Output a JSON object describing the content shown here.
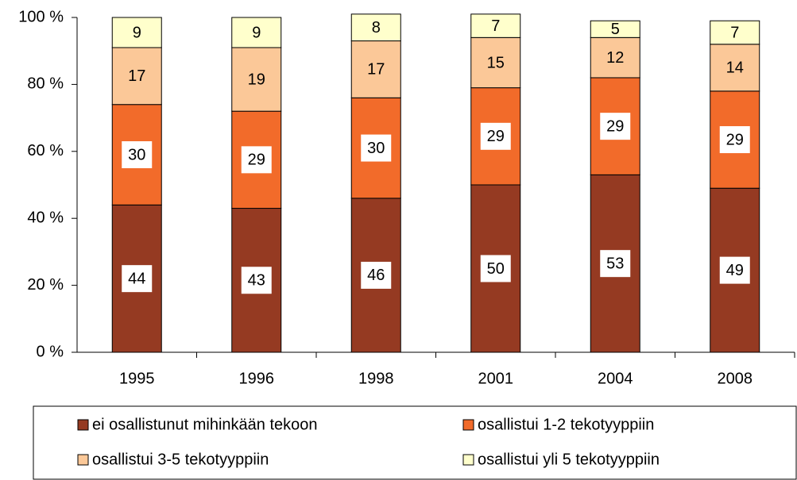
{
  "chart_data": {
    "type": "stacked_bar",
    "categories": [
      "1995",
      "1996",
      "1998",
      "2001",
      "2004",
      "2008"
    ],
    "series": [
      {
        "name": "ei osallistunut mihinkään tekoon",
        "color": "#953a22",
        "values": [
          44,
          43,
          46,
          50,
          53,
          49
        ]
      },
      {
        "name": "osallistui 1-2 tekotyyppiin",
        "color": "#f26b2a",
        "values": [
          30,
          29,
          30,
          29,
          29,
          29
        ]
      },
      {
        "name": "osallistui 3-5 tekotyyppiin",
        "color": "#fbc898",
        "values": [
          17,
          19,
          17,
          15,
          12,
          14
        ]
      },
      {
        "name": "osallistui yli 5 tekotyyppiin",
        "color": "#ffffcc",
        "values": [
          9,
          9,
          8,
          7,
          5,
          7
        ]
      }
    ],
    "ylim": [
      0,
      100
    ],
    "yticks": [
      {
        "value": 0,
        "label": "0 %"
      },
      {
        "value": 20,
        "label": "20 %"
      },
      {
        "value": 40,
        "label": "40 %"
      },
      {
        "value": 60,
        "label": "60 %"
      },
      {
        "value": 80,
        "label": "80 %"
      },
      {
        "value": 100,
        "label": "100 %"
      }
    ],
    "grid": false,
    "legend": "bottom"
  }
}
